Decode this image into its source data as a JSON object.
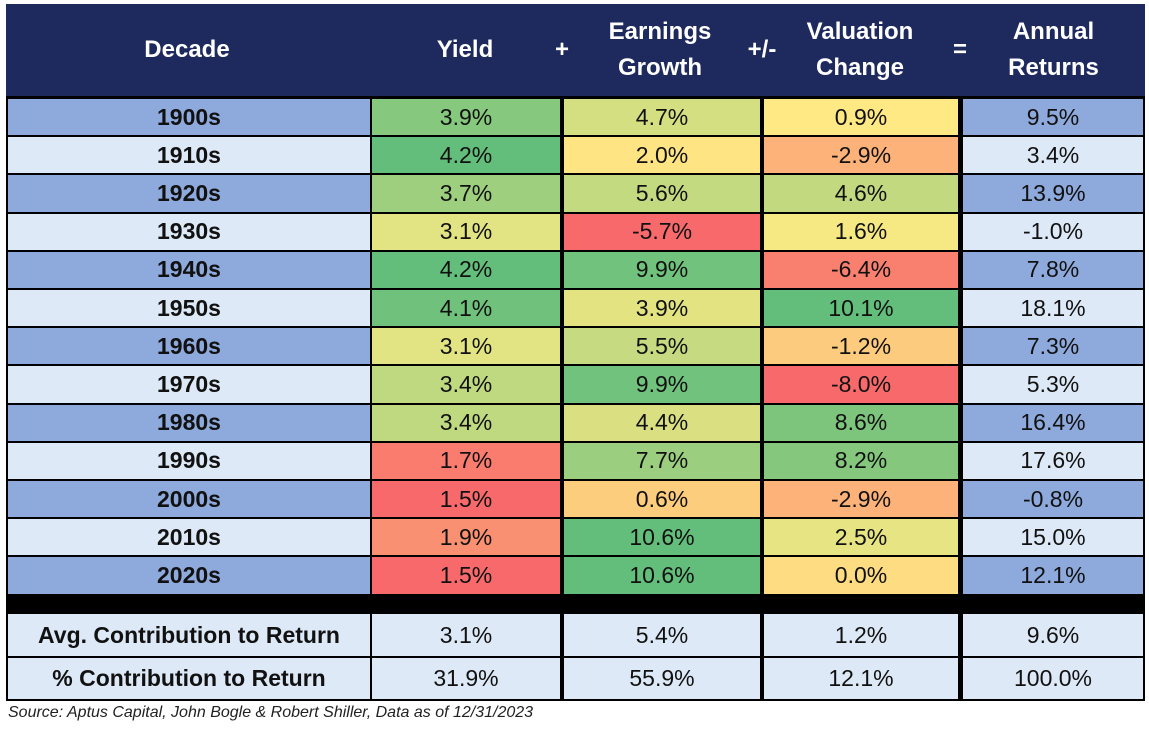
{
  "header": {
    "decade": "Decade",
    "yield": "Yield",
    "op_plus": "+",
    "earnings_line1": "Earnings",
    "earnings_line2": "Growth",
    "op_plusminus": "+/-",
    "valuation_line1": "Valuation",
    "valuation_line2": "Change",
    "op_equals": "=",
    "returns_line1": "Annual",
    "returns_line2": "Returns"
  },
  "colors": {
    "header_bg": "#1e2a5e",
    "row_dark": "#8ea9db",
    "row_light": "#dde9f6",
    "scale_red": "#f8696b",
    "scale_yellow": "#ffeb84",
    "scale_green": "#63be7b"
  },
  "chart_data": {
    "type": "table",
    "title": "",
    "columns": [
      "Decade",
      "Yield",
      "Earnings Growth",
      "Valuation Change",
      "Annual Returns"
    ],
    "operators": [
      "+",
      "+/-",
      "="
    ],
    "rows": [
      {
        "decade": "1900s",
        "yield": "3.9%",
        "earnings": "4.7%",
        "valuation": "0.9%",
        "returns": "9.5%",
        "yield_v": 3.9,
        "earnings_v": 4.7,
        "valuation_v": 0.9
      },
      {
        "decade": "1910s",
        "yield": "4.2%",
        "earnings": "2.0%",
        "valuation": "-2.9%",
        "returns": "3.4%",
        "yield_v": 4.2,
        "earnings_v": 2.0,
        "valuation_v": -2.9
      },
      {
        "decade": "1920s",
        "yield": "3.7%",
        "earnings": "5.6%",
        "valuation": "4.6%",
        "returns": "13.9%",
        "yield_v": 3.7,
        "earnings_v": 5.6,
        "valuation_v": 4.6
      },
      {
        "decade": "1930s",
        "yield": "3.1%",
        "earnings": "-5.7%",
        "valuation": "1.6%",
        "returns": "-1.0%",
        "yield_v": 3.1,
        "earnings_v": -5.7,
        "valuation_v": 1.6
      },
      {
        "decade": "1940s",
        "yield": "4.2%",
        "earnings": "9.9%",
        "valuation": "-6.4%",
        "returns": "7.8%",
        "yield_v": 4.2,
        "earnings_v": 9.9,
        "valuation_v": -6.4
      },
      {
        "decade": "1950s",
        "yield": "4.1%",
        "earnings": "3.9%",
        "valuation": "10.1%",
        "returns": "18.1%",
        "yield_v": 4.1,
        "earnings_v": 3.9,
        "valuation_v": 10.1
      },
      {
        "decade": "1960s",
        "yield": "3.1%",
        "earnings": "5.5%",
        "valuation": "-1.2%",
        "returns": "7.3%",
        "yield_v": 3.1,
        "earnings_v": 5.5,
        "valuation_v": -1.2
      },
      {
        "decade": "1970s",
        "yield": "3.4%",
        "earnings": "9.9%",
        "valuation": "-8.0%",
        "returns": "5.3%",
        "yield_v": 3.4,
        "earnings_v": 9.9,
        "valuation_v": -8.0
      },
      {
        "decade": "1980s",
        "yield": "3.4%",
        "earnings": "4.4%",
        "valuation": "8.6%",
        "returns": "16.4%",
        "yield_v": 3.4,
        "earnings_v": 4.4,
        "valuation_v": 8.6
      },
      {
        "decade": "1990s",
        "yield": "1.7%",
        "earnings": "7.7%",
        "valuation": "8.2%",
        "returns": "17.6%",
        "yield_v": 1.7,
        "earnings_v": 7.7,
        "valuation_v": 8.2
      },
      {
        "decade": "2000s",
        "yield": "1.5%",
        "earnings": "0.6%",
        "valuation": "-2.9%",
        "returns": "-0.8%",
        "yield_v": 1.5,
        "earnings_v": 0.6,
        "valuation_v": -2.9
      },
      {
        "decade": "2010s",
        "yield": "1.9%",
        "earnings": "10.6%",
        "valuation": "2.5%",
        "returns": "15.0%",
        "yield_v": 1.9,
        "earnings_v": 10.6,
        "valuation_v": 2.5
      },
      {
        "decade": "2020s",
        "yield": "1.5%",
        "earnings": "10.6%",
        "valuation": "0.0%",
        "returns": "12.1%",
        "yield_v": 1.5,
        "earnings_v": 10.6,
        "valuation_v": 0.0
      }
    ],
    "footer": [
      {
        "label": "Avg. Contribution to Return",
        "yield": "3.1%",
        "earnings": "5.4%",
        "valuation": "1.2%",
        "returns": "9.6%"
      },
      {
        "label": "% Contribution to Return",
        "yield": "31.9%",
        "earnings": "55.9%",
        "valuation": "12.1%",
        "returns": "100.0%"
      }
    ]
  },
  "source": "Source: Aptus Capital, John Bogle & Robert Shiller, Data as of 12/31/2023"
}
